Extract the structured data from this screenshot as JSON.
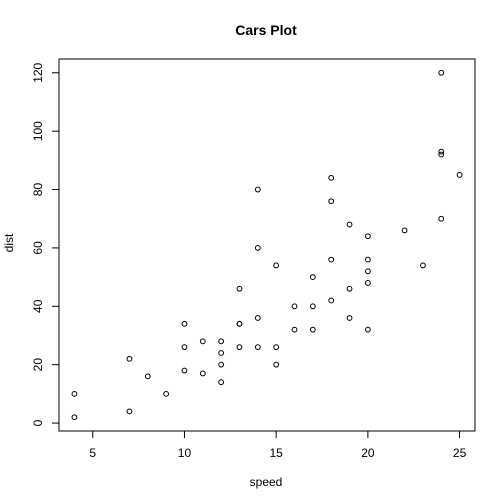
{
  "chart_data": {
    "type": "scatter",
    "title": "Cars Plot",
    "xlabel": "speed",
    "ylabel": "dist",
    "xlim": [
      3.16,
      25.84
    ],
    "ylim": [
      -2.72,
      124.72
    ],
    "x_ticks": [
      5,
      10,
      15,
      20,
      25
    ],
    "y_ticks": [
      0,
      20,
      40,
      60,
      80,
      100,
      120
    ],
    "grid": false,
    "marker": "open-circle",
    "colors": {
      "marker": "#000000",
      "frame": "#000000",
      "background": "#ffffff"
    },
    "points": [
      {
        "x": 4,
        "y": 2
      },
      {
        "x": 4,
        "y": 10
      },
      {
        "x": 7,
        "y": 4
      },
      {
        "x": 7,
        "y": 22
      },
      {
        "x": 8,
        "y": 16
      },
      {
        "x": 9,
        "y": 10
      },
      {
        "x": 10,
        "y": 18
      },
      {
        "x": 10,
        "y": 26
      },
      {
        "x": 10,
        "y": 34
      },
      {
        "x": 11,
        "y": 17
      },
      {
        "x": 11,
        "y": 28
      },
      {
        "x": 12,
        "y": 14
      },
      {
        "x": 12,
        "y": 20
      },
      {
        "x": 12,
        "y": 24
      },
      {
        "x": 12,
        "y": 28
      },
      {
        "x": 13,
        "y": 26
      },
      {
        "x": 13,
        "y": 34
      },
      {
        "x": 13,
        "y": 34
      },
      {
        "x": 13,
        "y": 46
      },
      {
        "x": 14,
        "y": 26
      },
      {
        "x": 14,
        "y": 36
      },
      {
        "x": 14,
        "y": 60
      },
      {
        "x": 14,
        "y": 80
      },
      {
        "x": 15,
        "y": 20
      },
      {
        "x": 15,
        "y": 26
      },
      {
        "x": 15,
        "y": 54
      },
      {
        "x": 16,
        "y": 32
      },
      {
        "x": 16,
        "y": 40
      },
      {
        "x": 17,
        "y": 32
      },
      {
        "x": 17,
        "y": 40
      },
      {
        "x": 17,
        "y": 50
      },
      {
        "x": 18,
        "y": 42
      },
      {
        "x": 18,
        "y": 56
      },
      {
        "x": 18,
        "y": 76
      },
      {
        "x": 18,
        "y": 84
      },
      {
        "x": 19,
        "y": 36
      },
      {
        "x": 19,
        "y": 46
      },
      {
        "x": 19,
        "y": 68
      },
      {
        "x": 20,
        "y": 32
      },
      {
        "x": 20,
        "y": 48
      },
      {
        "x": 20,
        "y": 52
      },
      {
        "x": 20,
        "y": 56
      },
      {
        "x": 20,
        "y": 64
      },
      {
        "x": 22,
        "y": 66
      },
      {
        "x": 23,
        "y": 54
      },
      {
        "x": 24,
        "y": 70
      },
      {
        "x": 24,
        "y": 92
      },
      {
        "x": 24,
        "y": 93
      },
      {
        "x": 24,
        "y": 120
      },
      {
        "x": 25,
        "y": 85
      }
    ]
  }
}
